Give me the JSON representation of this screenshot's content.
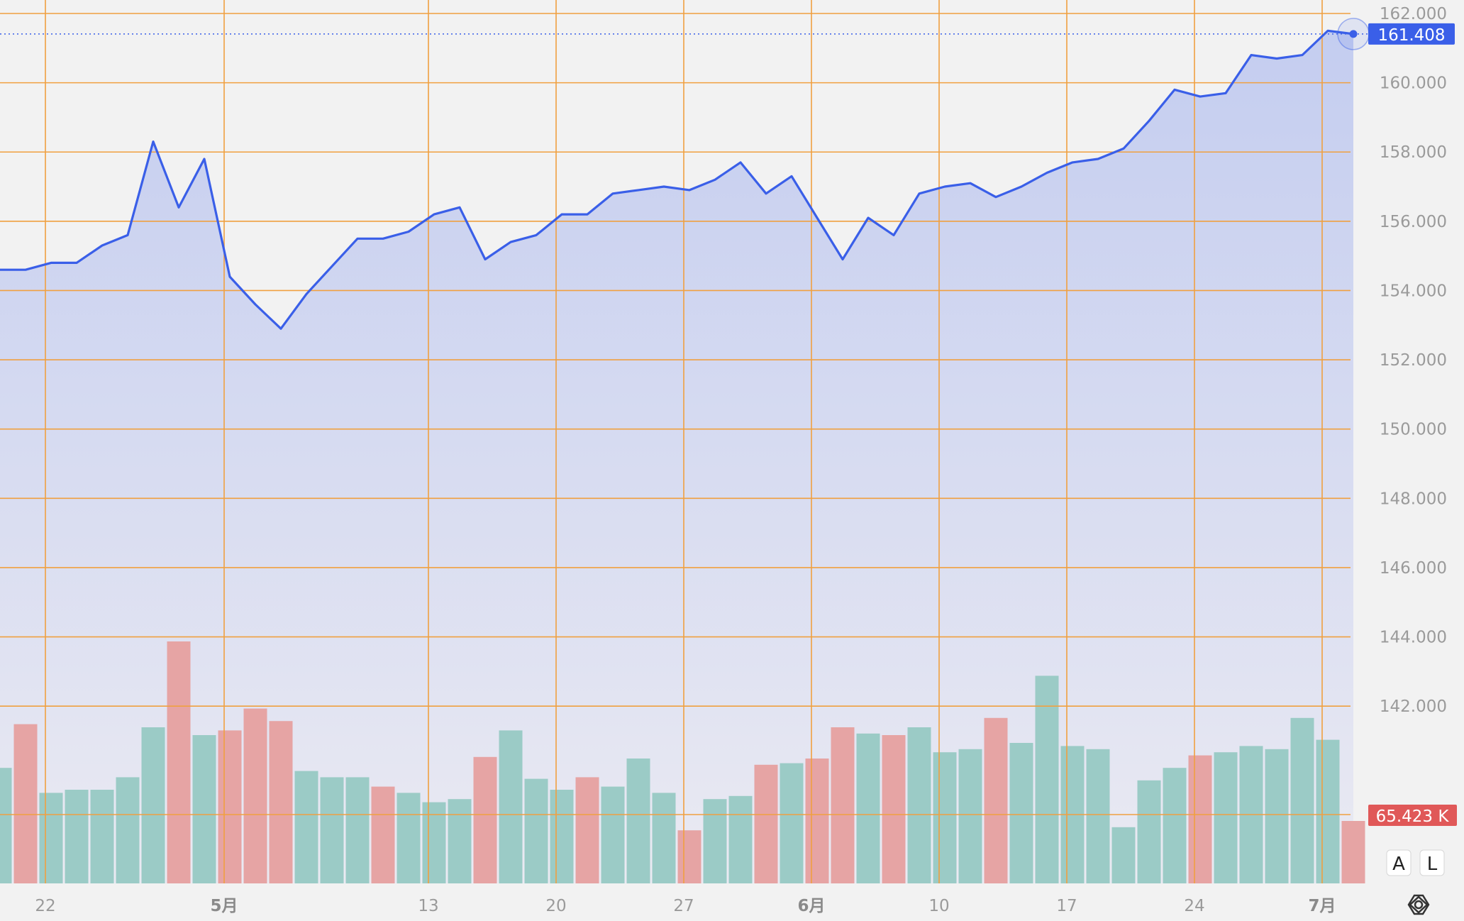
{
  "chart_data": {
    "type": "line",
    "title": "",
    "xlabel": "",
    "ylabel": "",
    "ylim": [
      141.0,
      162.0
    ],
    "y_ticks": [
      "162.000",
      "160.000",
      "158.000",
      "156.000",
      "154.000",
      "152.000",
      "150.000",
      "148.000",
      "146.000",
      "144.000",
      "142.000"
    ],
    "x_ticks": [
      {
        "label": "22",
        "bold": false
      },
      {
        "label": "5月",
        "bold": true
      },
      {
        "label": "13",
        "bold": false
      },
      {
        "label": "20",
        "bold": false
      },
      {
        "label": "27",
        "bold": false
      },
      {
        "label": "6月",
        "bold": true
      },
      {
        "label": "10",
        "bold": false
      },
      {
        "label": "17",
        "bold": false
      },
      {
        "label": "24",
        "bold": false
      },
      {
        "label": "7月",
        "bold": true
      }
    ],
    "grid": true,
    "colors": {
      "line": "#3a5fe8",
      "area_top": "#c4cdf0",
      "area_bottom": "#eaeaf2",
      "grid": "#f0a040",
      "volume_up": "#9bcbc6",
      "volume_down": "#e6a4a4",
      "price_badge": "#3a5fe8",
      "volume_badge": "#e05858"
    },
    "series": [
      {
        "values": [
          154.6,
          154.6,
          154.8,
          154.8,
          155.3,
          155.6,
          158.3,
          156.4,
          157.8,
          154.4,
          153.6,
          152.9,
          153.9,
          154.7,
          155.5,
          155.5,
          155.7,
          156.2,
          156.4,
          154.9,
          155.4,
          155.6,
          156.2,
          156.2,
          156.8,
          156.9,
          157.0,
          156.9,
          157.2,
          157.7,
          156.8,
          157.3,
          156.1,
          154.9,
          156.1,
          155.6,
          156.8,
          157.0,
          157.1,
          156.7,
          157.0,
          157.4,
          157.7,
          157.8,
          158.1,
          158.9,
          159.8,
          159.6,
          159.7,
          160.8,
          160.7,
          160.8,
          161.5,
          161.408
        ]
      }
    ],
    "volume": {
      "values": [
        0.74,
        1.02,
        0.58,
        0.6,
        0.6,
        0.68,
        1.0,
        1.55,
        0.95,
        0.98,
        1.12,
        1.04,
        0.72,
        0.68,
        0.68,
        0.62,
        0.58,
        0.52,
        0.54,
        0.81,
        0.98,
        0.67,
        0.6,
        0.68,
        0.62,
        0.8,
        0.58,
        0.34,
        0.54,
        0.56,
        0.76,
        0.77,
        0.8,
        1.0,
        0.96,
        0.95,
        1.0,
        0.84,
        0.86,
        1.06,
        0.9,
        1.33,
        0.88,
        0.86,
        0.36,
        0.66,
        0.74,
        0.82,
        0.84,
        0.88,
        0.86,
        1.06,
        0.92,
        0.4
      ],
      "down": [
        false,
        true,
        false,
        false,
        false,
        false,
        false,
        true,
        false,
        true,
        true,
        true,
        false,
        false,
        false,
        true,
        false,
        false,
        false,
        true,
        false,
        false,
        false,
        true,
        false,
        false,
        false,
        true,
        false,
        false,
        true,
        false,
        true,
        true,
        false,
        true,
        false,
        false,
        false,
        true,
        false,
        false,
        false,
        false,
        false,
        false,
        false,
        true,
        false,
        false,
        false,
        false,
        false,
        true
      ]
    },
    "last_price_label": "161.408",
    "last_volume_label": "65.423 K",
    "scale_buttons": [
      "A",
      "L"
    ],
    "settings_icon": "hexagon-settings-icon"
  }
}
